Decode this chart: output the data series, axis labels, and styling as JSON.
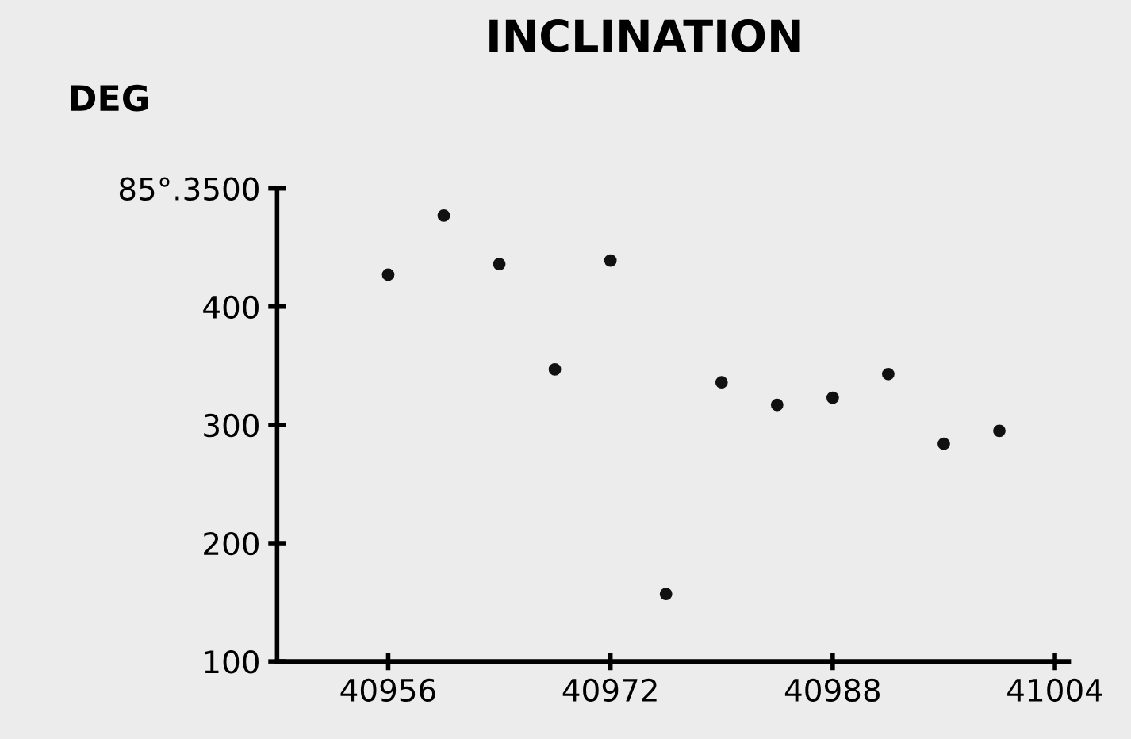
{
  "chart_data": {
    "type": "scatter",
    "title": "INCLINATION",
    "ylabel": "DEG",
    "x": [
      40956,
      40960,
      40964,
      40968,
      40972,
      40976,
      40980,
      40984,
      40988,
      40992,
      40996,
      41000
    ],
    "series": [
      {
        "color": "#111111",
        "values": [
          427,
          477,
          436,
          347,
          439,
          157,
          336,
          317,
          323,
          343,
          284,
          295
        ]
      }
    ],
    "xlim": [
      40948,
      41005
    ],
    "xticks": [
      40956,
      40972,
      40988,
      41004
    ],
    "ylim": [
      100,
      500
    ],
    "yticks": [
      100,
      200,
      300,
      400,
      {
        "value": 500,
        "label": "85°.3500"
      }
    ],
    "grid": false,
    "marker": "circle"
  }
}
